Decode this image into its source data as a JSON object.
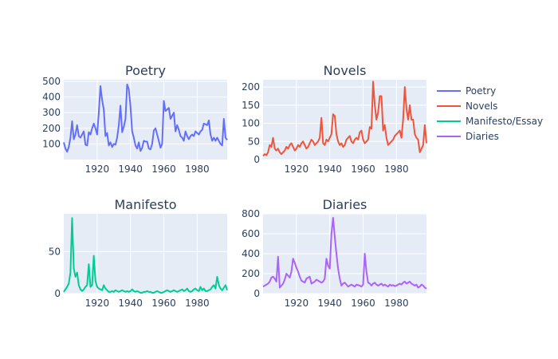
{
  "chart_data": {
    "type": "line",
    "colors": {
      "Poetry": "#636efa",
      "Novels": "#ef553b",
      "Manifesto/Essay": "#00cc96",
      "Diaries": "#ab63fa"
    },
    "legend": {
      "placement": "right",
      "entries": [
        "Poetry",
        "Novels",
        "Manifesto/Essay",
        "Diaries"
      ]
    },
    "x": [
      1900,
      1901,
      1902,
      1903,
      1904,
      1905,
      1906,
      1907,
      1908,
      1909,
      1910,
      1911,
      1912,
      1913,
      1914,
      1915,
      1916,
      1917,
      1918,
      1919,
      1920,
      1921,
      1922,
      1923,
      1924,
      1925,
      1926,
      1927,
      1928,
      1929,
      1930,
      1931,
      1932,
      1933,
      1934,
      1935,
      1936,
      1937,
      1938,
      1939,
      1940,
      1941,
      1942,
      1943,
      1944,
      1945,
      1946,
      1947,
      1948,
      1949,
      1950,
      1951,
      1952,
      1953,
      1954,
      1955,
      1956,
      1957,
      1958,
      1959,
      1960,
      1961,
      1962,
      1963,
      1964,
      1965,
      1966,
      1967,
      1968,
      1969,
      1970,
      1971,
      1972,
      1973,
      1974,
      1975,
      1976,
      1977,
      1978,
      1979,
      1980,
      1981,
      1982,
      1983,
      1984,
      1985,
      1986,
      1987,
      1988,
      1989,
      1990,
      1991,
      1992,
      1993,
      1994,
      1995,
      1996,
      1997,
      1998
    ],
    "subplots": [
      {
        "title": "Poetry",
        "series_name": "Poetry",
        "xlim": [
          1900,
          1998
        ],
        "ylim": [
          0,
          510
        ],
        "xticks": [
          1920,
          1940,
          1960,
          1980
        ],
        "yticks": [
          100,
          200,
          300,
          400,
          500
        ],
        "values": [
          110,
          70,
          50,
          80,
          140,
          245,
          130,
          160,
          220,
          150,
          140,
          160,
          180,
          95,
          90,
          175,
          160,
          200,
          230,
          200,
          160,
          300,
          470,
          380,
          320,
          150,
          170,
          90,
          110,
          80,
          100,
          95,
          140,
          220,
          345,
          175,
          210,
          260,
          480,
          450,
          340,
          180,
          140,
          90,
          70,
          110,
          55,
          75,
          120,
          115,
          115,
          70,
          65,
          100,
          185,
          200,
          160,
          120,
          75,
          100,
          375,
          310,
          320,
          330,
          260,
          280,
          300,
          180,
          220,
          190,
          150,
          140,
          120,
          180,
          150,
          130,
          150,
          160,
          150,
          180,
          170,
          160,
          180,
          190,
          230,
          225,
          220,
          250,
          160,
          120,
          140,
          120,
          140,
          120,
          100,
          90,
          260,
          140,
          125
        ]
      },
      {
        "title": "Novels",
        "series_name": "Novels",
        "xlim": [
          1900,
          1998
        ],
        "ylim": [
          0,
          220
        ],
        "xticks": [
          1920,
          1940,
          1960,
          1980
        ],
        "yticks": [
          0,
          50,
          100,
          150,
          200
        ],
        "values": [
          10,
          15,
          12,
          20,
          40,
          35,
          60,
          30,
          25,
          30,
          20,
          15,
          20,
          25,
          35,
          30,
          40,
          45,
          35,
          25,
          30,
          40,
          35,
          45,
          50,
          40,
          30,
          35,
          45,
          55,
          50,
          40,
          45,
          50,
          60,
          115,
          45,
          40,
          55,
          50,
          60,
          70,
          125,
          120,
          70,
          50,
          40,
          45,
          35,
          40,
          55,
          60,
          65,
          50,
          45,
          55,
          60,
          55,
          75,
          80,
          55,
          45,
          50,
          55,
          90,
          85,
          215,
          150,
          110,
          130,
          175,
          175,
          80,
          95,
          60,
          40,
          45,
          50,
          55,
          65,
          70,
          75,
          80,
          60,
          110,
          200,
          140,
          110,
          150,
          110,
          110,
          70,
          60,
          55,
          20,
          30,
          40,
          95,
          45
        ]
      },
      {
        "title": "Manifesto",
        "series_name": "Manifesto/Essay",
        "xlim": [
          1900,
          1998
        ],
        "ylim": [
          0,
          95
        ],
        "xticks": [
          1920,
          1940,
          1960,
          1980
        ],
        "yticks": [
          0,
          50
        ],
        "values": [
          2,
          5,
          8,
          12,
          25,
          90,
          30,
          20,
          25,
          10,
          5,
          3,
          5,
          8,
          10,
          35,
          8,
          10,
          45,
          15,
          8,
          6,
          5,
          4,
          10,
          6,
          4,
          2,
          2,
          3,
          2,
          4,
          3,
          2,
          3,
          4,
          3,
          2,
          3,
          2,
          3,
          5,
          3,
          2,
          3,
          2,
          1,
          1,
          2,
          2,
          3,
          2,
          2,
          1,
          1,
          2,
          3,
          2,
          1,
          1,
          2,
          3,
          4,
          3,
          2,
          3,
          4,
          3,
          2,
          3,
          4,
          5,
          3,
          4,
          6,
          3,
          2,
          3,
          5,
          6,
          4,
          3,
          8,
          4,
          6,
          3,
          3,
          4,
          5,
          8,
          10,
          6,
          20,
          10,
          6,
          4,
          7,
          10,
          4
        ]
      },
      {
        "title": "Diaries",
        "series_name": "Diaries",
        "xlim": [
          1900,
          1998
        ],
        "ylim": [
          0,
          800
        ],
        "xticks": [
          1920,
          1940,
          1960,
          1980
        ],
        "yticks": [
          0,
          200,
          400,
          600,
          800
        ],
        "values": [
          70,
          80,
          90,
          100,
          120,
          160,
          170,
          150,
          120,
          370,
          60,
          80,
          100,
          140,
          200,
          180,
          160,
          220,
          350,
          310,
          260,
          220,
          170,
          130,
          120,
          110,
          150,
          160,
          170,
          100,
          110,
          120,
          140,
          130,
          120,
          110,
          120,
          150,
          350,
          280,
          250,
          600,
          760,
          570,
          400,
          250,
          150,
          80,
          100,
          110,
          90,
          70,
          80,
          90,
          80,
          70,
          90,
          85,
          80,
          70,
          90,
          400,
          220,
          110,
          100,
          80,
          100,
          110,
          90,
          80,
          90,
          100,
          80,
          90,
          80,
          70,
          90,
          80,
          85,
          75,
          80,
          90,
          100,
          90,
          110,
          120,
          100,
          110,
          120,
          100,
          90,
          80,
          90,
          60,
          70,
          90,
          80,
          60,
          50
        ]
      }
    ]
  }
}
